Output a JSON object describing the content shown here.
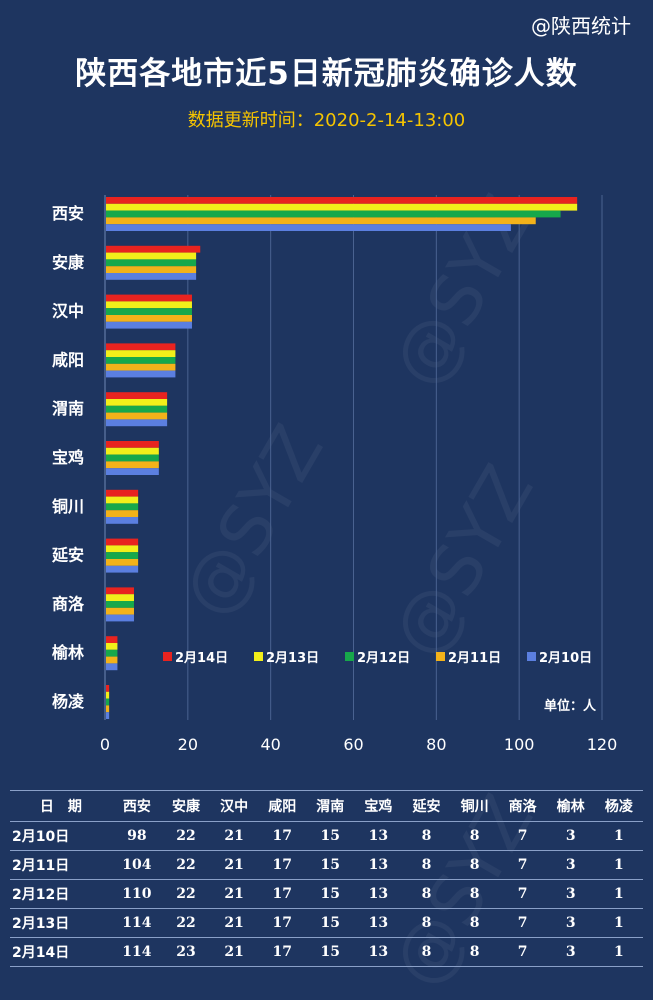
{
  "source": "@陕西统计",
  "title": "陕西各地市近5日新冠肺炎确诊人数",
  "subtitle": "数据更新时间：2020-2-14-13:00",
  "unit_label": "单位：人",
  "colors": {
    "2月14日": "#e8231f",
    "2月13日": "#f2ef1a",
    "2月12日": "#17a84b",
    "2月11日": "#f3b21a",
    "2月10日": "#5b7fe0"
  },
  "chart_data": {
    "type": "bar",
    "orientation": "horizontal",
    "title": "陕西各地市近5日新冠肺炎确诊人数",
    "categories": [
      "西安",
      "安康",
      "汉中",
      "咸阳",
      "渭南",
      "宝鸡",
      "铜川",
      "延安",
      "商洛",
      "榆林",
      "杨凌"
    ],
    "series": [
      {
        "name": "2月14日",
        "values": [
          114,
          23,
          21,
          17,
          15,
          13,
          8,
          8,
          7,
          3,
          1
        ]
      },
      {
        "name": "2月13日",
        "values": [
          114,
          22,
          21,
          17,
          15,
          13,
          8,
          8,
          7,
          3,
          1
        ]
      },
      {
        "name": "2月12日",
        "values": [
          110,
          22,
          21,
          17,
          15,
          13,
          8,
          8,
          7,
          3,
          1
        ]
      },
      {
        "name": "2月11日",
        "values": [
          104,
          22,
          21,
          17,
          15,
          13,
          8,
          8,
          7,
          3,
          1
        ]
      },
      {
        "name": "2月10日",
        "values": [
          98,
          22,
          21,
          17,
          15,
          13,
          8,
          8,
          7,
          3,
          1
        ]
      }
    ],
    "xlim": [
      0,
      120
    ],
    "xticks": [
      0,
      20,
      40,
      60,
      80,
      100,
      120
    ],
    "xlabel": "",
    "ylabel": "",
    "grid": true,
    "legend": "bottom-right"
  },
  "table": {
    "headers": [
      "日　期",
      "西安",
      "安康",
      "汉中",
      "咸阳",
      "渭南",
      "宝鸡",
      "延安",
      "铜川",
      "商洛",
      "榆林",
      "杨凌"
    ],
    "rows": [
      [
        "2月10日",
        "98",
        "22",
        "21",
        "17",
        "15",
        "13",
        "8",
        "8",
        "7",
        "3",
        "1"
      ],
      [
        "2月11日",
        "104",
        "22",
        "21",
        "17",
        "15",
        "13",
        "8",
        "8",
        "7",
        "3",
        "1"
      ],
      [
        "2月12日",
        "110",
        "22",
        "21",
        "17",
        "15",
        "13",
        "8",
        "8",
        "7",
        "3",
        "1"
      ],
      [
        "2月13日",
        "114",
        "22",
        "21",
        "17",
        "15",
        "13",
        "8",
        "8",
        "7",
        "3",
        "1"
      ],
      [
        "2月14日",
        "114",
        "23",
        "21",
        "17",
        "15",
        "13",
        "8",
        "8",
        "7",
        "3",
        "1"
      ]
    ]
  }
}
